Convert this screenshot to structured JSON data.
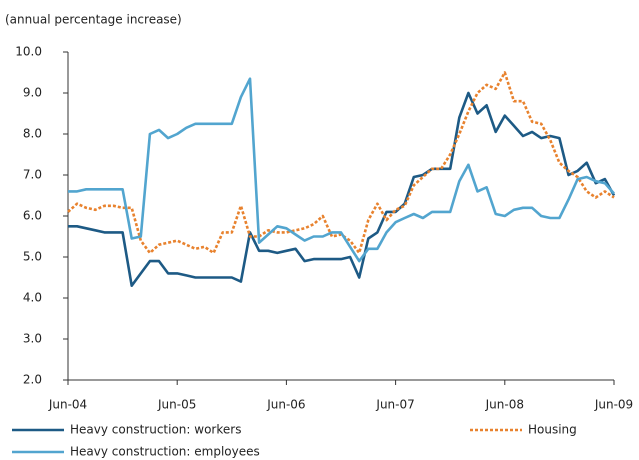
{
  "chart_data": {
    "type": "line",
    "subtitle": "(annual percentage increase)",
    "categories": [
      "Jun-04",
      null,
      null,
      null,
      null,
      null,
      null,
      null,
      null,
      null,
      null,
      null,
      "Jun-05",
      null,
      null,
      null,
      null,
      null,
      null,
      null,
      null,
      null,
      null,
      null,
      "Jun-06",
      null,
      null,
      null,
      null,
      null,
      null,
      null,
      null,
      null,
      null,
      null,
      "Jun-07",
      null,
      null,
      null,
      null,
      null,
      null,
      null,
      null,
      null,
      null,
      null,
      "Jun-08",
      null,
      null,
      null,
      null,
      null,
      null,
      null,
      null,
      null,
      null,
      null,
      "Jun-09"
    ],
    "ylim": [
      2.0,
      10.0
    ],
    "yticks": [
      {
        "value": 2,
        "label": "2.0"
      },
      {
        "value": 3,
        "label": "3.0"
      },
      {
        "value": 4,
        "label": "4.0"
      },
      {
        "value": 5,
        "label": "5.0"
      },
      {
        "value": 6,
        "label": "6.0"
      },
      {
        "value": 7,
        "label": "7.0"
      },
      {
        "value": 8,
        "label": "8.0"
      },
      {
        "value": 9,
        "label": "9.0"
      },
      {
        "value": 10,
        "label": "10.0"
      }
    ],
    "grid": false,
    "series": [
      {
        "name": "Heavy construction: workers",
        "color": "#1d5a85",
        "dash": "solid",
        "values": [
          5.75,
          5.75,
          5.7,
          5.65,
          5.6,
          5.6,
          5.6,
          4.3,
          4.6,
          4.9,
          4.9,
          4.6,
          4.6,
          4.55,
          4.5,
          4.5,
          4.5,
          4.5,
          4.5,
          4.4,
          5.6,
          5.15,
          5.15,
          5.1,
          5.15,
          5.2,
          4.9,
          4.95,
          4.95,
          4.95,
          4.95,
          5.0,
          4.5,
          5.45,
          5.6,
          6.1,
          6.1,
          6.3,
          6.95,
          7.0,
          7.15,
          7.15,
          7.15,
          8.4,
          9.0,
          8.5,
          8.7,
          8.05,
          8.45,
          8.2,
          7.95,
          8.05,
          7.9,
          7.95,
          7.9,
          7.0,
          7.1,
          7.3,
          6.8,
          6.9,
          6.5
        ]
      },
      {
        "name": "Housing",
        "color": "#e8822e",
        "dash": "dotted",
        "values": [
          6.1,
          6.3,
          6.2,
          6.15,
          6.25,
          6.25,
          6.2,
          6.2,
          5.4,
          5.1,
          5.3,
          5.35,
          5.4,
          5.3,
          5.2,
          5.25,
          5.1,
          5.6,
          5.6,
          6.25,
          5.5,
          5.5,
          5.65,
          5.6,
          5.6,
          5.65,
          5.7,
          5.8,
          6.0,
          5.5,
          5.55,
          5.4,
          5.1,
          5.9,
          6.3,
          5.9,
          6.15,
          6.25,
          6.75,
          6.95,
          7.15,
          7.15,
          7.5,
          8.0,
          8.55,
          9.0,
          9.2,
          9.1,
          9.5,
          8.8,
          8.8,
          8.3,
          8.25,
          7.85,
          7.3,
          7.1,
          6.95,
          6.6,
          6.45,
          6.6,
          6.45
        ]
      },
      {
        "name": "Heavy construction: employees",
        "color": "#52a5cf",
        "dash": "solid",
        "values": [
          6.6,
          6.6,
          6.65,
          6.65,
          6.65,
          6.65,
          6.65,
          5.45,
          5.5,
          8.0,
          8.1,
          7.9,
          8.0,
          8.15,
          8.25,
          8.25,
          8.25,
          8.25,
          8.25,
          8.9,
          9.35,
          5.35,
          5.55,
          5.75,
          5.7,
          5.55,
          5.4,
          5.5,
          5.5,
          5.6,
          5.6,
          5.25,
          4.9,
          5.2,
          5.2,
          5.6,
          5.85,
          5.95,
          6.05,
          5.95,
          6.1,
          6.1,
          6.1,
          6.85,
          7.25,
          6.6,
          6.7,
          6.05,
          6.0,
          6.15,
          6.2,
          6.2,
          6.0,
          5.95,
          5.95,
          6.4,
          6.9,
          6.95,
          6.85,
          6.8,
          6.55
        ]
      }
    ]
  }
}
